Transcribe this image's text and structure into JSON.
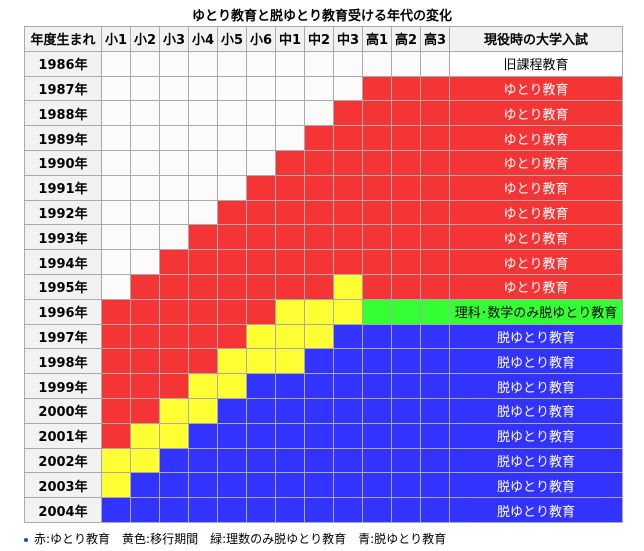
{
  "title": "ゆとり教育と脱ゆとり教育受ける年代の変化",
  "header": {
    "year_col": "年度生まれ",
    "grades": [
      "小1",
      "小2",
      "小3",
      "小4",
      "小5",
      "小6",
      "中1",
      "中2",
      "中3",
      "高1",
      "高2",
      "高3"
    ],
    "result_col": "現役時の大学入試"
  },
  "colors": {
    "w": "#fbfbfb",
    "r": "#f53535",
    "y": "#ffff33",
    "g": "#33ff33",
    "b": "#3333ff"
  },
  "rows": [
    {
      "year": "1986年",
      "cells": "wwwwwwwwwwww",
      "result": "旧課程教育",
      "rc": "old"
    },
    {
      "year": "1987年",
      "cells": "wwwwwwwwwrrr",
      "result": "ゆとり教育",
      "rc": "r"
    },
    {
      "year": "1988年",
      "cells": "wwwwwwwwrrrr",
      "result": "ゆとり教育",
      "rc": "r"
    },
    {
      "year": "1989年",
      "cells": "wwwwwwwrrrrr",
      "result": "ゆとり教育",
      "rc": "r"
    },
    {
      "year": "1990年",
      "cells": "wwwwwwrrrrrr",
      "result": "ゆとり教育",
      "rc": "r"
    },
    {
      "year": "1991年",
      "cells": "wwwwwrrrrrrr",
      "result": "ゆとり教育",
      "rc": "r"
    },
    {
      "year": "1992年",
      "cells": "wwwwrrrrrrrr",
      "result": "ゆとり教育",
      "rc": "r"
    },
    {
      "year": "1993年",
      "cells": "wwwrrrrrrrrr",
      "result": "ゆとり教育",
      "rc": "r"
    },
    {
      "year": "1994年",
      "cells": "wwrrrrrrrrrr",
      "result": "ゆとり教育",
      "rc": "r"
    },
    {
      "year": "1995年",
      "cells": "wrrrrrrryrrr",
      "result": "ゆとり教育",
      "rc": "r"
    },
    {
      "year": "1996年",
      "cells": "rrrrrryyyggg",
      "result": "理科･数学のみ脱ゆとり教育",
      "rc": "g"
    },
    {
      "year": "1997年",
      "cells": "rrrrryyybbbb",
      "result": "脱ゆとり教育",
      "rc": "b"
    },
    {
      "year": "1998年",
      "cells": "rrrryyybbbbb",
      "result": "脱ゆとり教育",
      "rc": "b"
    },
    {
      "year": "1999年",
      "cells": "rrryybbbbbbb",
      "result": "脱ゆとり教育",
      "rc": "b"
    },
    {
      "year": "2000年",
      "cells": "rryybbbbbbbb",
      "result": "脱ゆとり教育",
      "rc": "b"
    },
    {
      "year": "2001年",
      "cells": "ryybbbbbbbbb",
      "result": "脱ゆとり教育",
      "rc": "b"
    },
    {
      "year": "2002年",
      "cells": "yybbbbbbbbbb",
      "result": "脱ゆとり教育",
      "rc": "b"
    },
    {
      "year": "2003年",
      "cells": "ybbbbbbbbbbb",
      "result": "脱ゆとり教育",
      "rc": "b"
    },
    {
      "year": "2004年",
      "cells": "bbbbbbbbbbbb",
      "result": "脱ゆとり教育",
      "rc": "b"
    }
  ],
  "legend": "赤:ゆとり教育　黄色:移行期間　緑:理数のみ脱ゆとり教育　青:脱ゆとり教育"
}
